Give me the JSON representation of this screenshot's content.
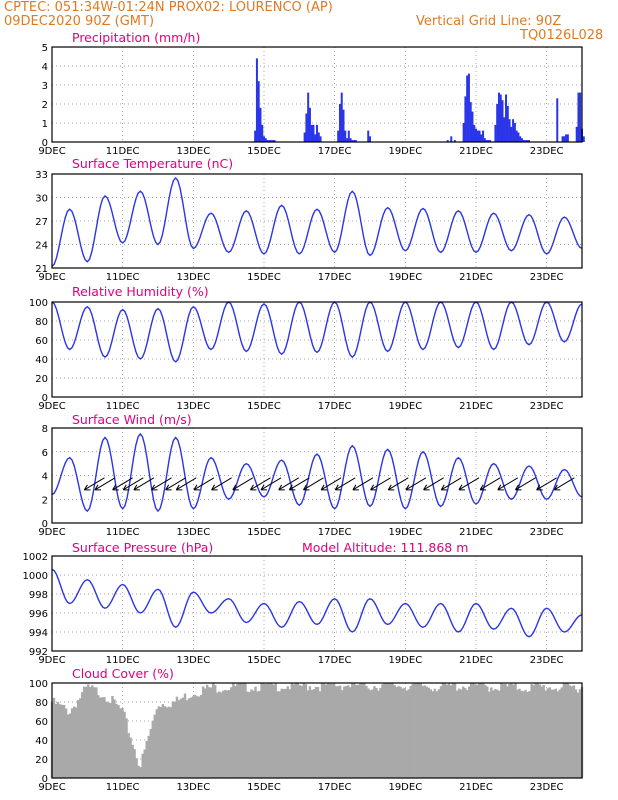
{
  "header": {
    "line1": "CPTEC:  051:34W-01:24N  PROX02: LOURENCO (AP)",
    "line2_left": "09DEC2020 90Z (GMT)",
    "line2_right": "Vertical Grid Line: 90Z",
    "line3_right": "TQ0126L028"
  },
  "colors": {
    "header": "#e07a22",
    "title": "#e0007e",
    "series": "#2a35e8",
    "cloud": "#a9a9a9"
  },
  "chart_data": [
    {
      "type": "bar",
      "title": "Precipitation (mm/h)",
      "ylim": [
        0,
        5
      ],
      "yticks": [
        "0",
        "1",
        "2",
        "3",
        "4",
        "5"
      ],
      "xticks": [
        "9DEC",
        "11DEC",
        "13DEC",
        "15DEC",
        "17DEC",
        "19DEC",
        "21DEC",
        "23DEC"
      ],
      "x": [
        5.75,
        5.8,
        5.85,
        5.9,
        5.95,
        6.0,
        6.05,
        6.1,
        6.15,
        6.2,
        6.25,
        6.3,
        7.15,
        7.2,
        7.25,
        7.3,
        7.35,
        7.4,
        7.45,
        7.5,
        7.55,
        7.6,
        8.1,
        8.15,
        8.2,
        8.25,
        8.3,
        8.35,
        8.4,
        8.45,
        8.5,
        8.55,
        8.6,
        8.95,
        9.0,
        11.2,
        11.3,
        11.4,
        11.65,
        11.7,
        11.75,
        11.8,
        11.85,
        11.9,
        11.95,
        12.0,
        12.05,
        12.1,
        12.15,
        12.2,
        12.25,
        12.3,
        12.35,
        12.4,
        12.55,
        12.6,
        12.65,
        12.7,
        12.75,
        12.8,
        12.85,
        12.9,
        12.95,
        13.0,
        13.05,
        13.1,
        13.15,
        13.2,
        13.25,
        13.3,
        13.35,
        13.4,
        13.45,
        13.5,
        14.3,
        14.45,
        14.5,
        14.55,
        14.6,
        14.85,
        14.9,
        14.95,
        15.0,
        15.05
      ],
      "values": [
        0.6,
        4.4,
        3.2,
        1.8,
        0.9,
        0.3,
        0.2,
        0.1,
        0.1,
        0.1,
        0.1,
        0.1,
        0.5,
        1.5,
        2.6,
        1.8,
        0.9,
        0.9,
        0.4,
        0.9,
        0.5,
        0.3,
        0.6,
        2.0,
        2.6,
        1.7,
        0.6,
        0.2,
        0.6,
        0.2,
        0.1,
        0.1,
        0.1,
        0.6,
        0.3,
        0.1,
        0.3,
        0.1,
        1.0,
        2.4,
        3.5,
        3.6,
        2.1,
        1.6,
        0.9,
        0.7,
        0.6,
        0.6,
        0.4,
        0.6,
        0.2,
        0.1,
        0.1,
        0.1,
        0.9,
        2.0,
        2.6,
        2.5,
        2.2,
        1.3,
        2.5,
        1.9,
        1.2,
        0.8,
        1.2,
        1.0,
        0.6,
        0.5,
        0.3,
        0.2,
        0.1,
        0.1,
        0.1,
        0.1,
        2.3,
        0.3,
        0.3,
        0.4,
        0.4,
        0.8,
        2.6,
        2.6,
        0.7,
        0.3
      ],
      "xlim": [
        0,
        15
      ]
    },
    {
      "type": "line",
      "title": "Surface Temperature (nC)",
      "ylim": [
        21,
        33
      ],
      "yticks": [
        "21",
        "24",
        "27",
        "30",
        "33"
      ],
      "xticks": [
        "9DEC",
        "11DEC",
        "13DEC",
        "15DEC",
        "17DEC",
        "19DEC",
        "21DEC",
        "23DEC"
      ],
      "x": [
        0,
        0.5,
        1,
        1.5,
        2,
        2.5,
        3,
        3.5,
        4,
        4.5,
        5,
        5.5,
        6,
        6.5,
        7,
        7.5,
        8,
        8.5,
        9,
        9.5,
        10,
        10.5,
        11,
        11.5,
        12,
        12.5,
        13,
        13.5,
        14,
        14.5,
        15
      ],
      "values": [
        21.2,
        28.5,
        21.8,
        30.2,
        24.2,
        30.8,
        24.0,
        32.5,
        23.5,
        28.0,
        23.0,
        28.3,
        22.8,
        29.0,
        22.8,
        28.5,
        23.0,
        30.8,
        22.6,
        28.7,
        23.2,
        28.6,
        23.0,
        28.3,
        23.0,
        28.0,
        23.2,
        27.8,
        22.8,
        27.5,
        23.5
      ],
      "xlim": [
        0,
        15
      ]
    },
    {
      "type": "line",
      "title": "Relative Humidity (%)",
      "ylim": [
        0,
        100
      ],
      "yticks": [
        "0",
        "20",
        "40",
        "60",
        "80",
        "100"
      ],
      "xticks": [
        "9DEC",
        "11DEC",
        "13DEC",
        "15DEC",
        "17DEC",
        "19DEC",
        "21DEC",
        "23DEC"
      ],
      "x": [
        0,
        0.5,
        1,
        1.5,
        2,
        2.5,
        3,
        3.5,
        4,
        4.5,
        5,
        5.5,
        6,
        6.5,
        7,
        7.5,
        8,
        8.5,
        9,
        9.5,
        10,
        10.5,
        11,
        11.5,
        12,
        12.5,
        13,
        13.5,
        14,
        14.5,
        15
      ],
      "values": [
        100,
        50,
        95,
        42,
        92,
        40,
        93,
        37,
        95,
        50,
        100,
        48,
        98,
        45,
        100,
        47,
        100,
        42,
        100,
        48,
        100,
        50,
        100,
        52,
        100,
        50,
        100,
        55,
        100,
        58,
        98
      ],
      "xlim": [
        0,
        15
      ]
    },
    {
      "type": "line",
      "title": "Surface Wind (m/s)",
      "ylim": [
        0,
        8
      ],
      "yticks": [
        "0",
        "2",
        "4",
        "6",
        "8"
      ],
      "xticks": [
        "9DEC",
        "11DEC",
        "13DEC",
        "15DEC",
        "17DEC",
        "19DEC",
        "21DEC",
        "23DEC"
      ],
      "x": [
        0,
        0.5,
        1,
        1.5,
        2,
        2.5,
        3,
        3.5,
        4,
        4.5,
        5,
        5.5,
        6,
        6.5,
        7,
        7.5,
        8,
        8.5,
        9,
        9.5,
        10,
        10.5,
        11,
        11.5,
        12,
        12.5,
        13,
        13.5,
        14,
        14.5,
        15
      ],
      "values": [
        2.4,
        5.5,
        1.0,
        7.2,
        1.2,
        7.5,
        1.0,
        7.2,
        1.2,
        5.5,
        2.0,
        5.0,
        2.2,
        5.3,
        1.5,
        5.8,
        1.2,
        6.5,
        1.4,
        6.2,
        1.2,
        6.0,
        1.4,
        5.5,
        1.6,
        5.0,
        2.0,
        4.8,
        2.0,
        4.5,
        2.2
      ],
      "xlim": [
        0,
        15
      ]
    },
    {
      "type": "line",
      "title": "Surface Pressure (hPa)",
      "annotation": "Model Altitude: 111.868  m",
      "ylim": [
        992,
        1002
      ],
      "yticks": [
        "992",
        "994",
        "996",
        "998",
        "1000",
        "1002"
      ],
      "xticks": [
        "9DEC",
        "11DEC",
        "13DEC",
        "15DEC",
        "17DEC",
        "19DEC",
        "21DEC",
        "23DEC"
      ],
      "x": [
        0,
        0.5,
        1,
        1.5,
        2,
        2.5,
        3,
        3.5,
        4,
        4.5,
        5,
        5.5,
        6,
        6.5,
        7,
        7.5,
        8,
        8.5,
        9,
        9.5,
        10,
        10.5,
        11,
        11.5,
        12,
        12.5,
        13,
        13.5,
        14,
        14.5,
        15
      ],
      "values": [
        1000.6,
        997.0,
        999.5,
        996.5,
        999.0,
        996.0,
        998.5,
        994.5,
        998.2,
        996.0,
        997.5,
        995.0,
        997.0,
        994.5,
        997.2,
        994.8,
        997.5,
        994.0,
        997.5,
        994.8,
        997.0,
        994.5,
        997.0,
        994.0,
        997.0,
        994.3,
        996.5,
        993.5,
        996.5,
        994.0,
        995.8
      ],
      "xlim": [
        0,
        15
      ]
    },
    {
      "type": "area",
      "title": "Cloud Cover (%)",
      "ylim": [
        0,
        100
      ],
      "yticks": [
        "0",
        "20",
        "40",
        "60",
        "80",
        "100"
      ],
      "xticks": [
        "9DEC",
        "11DEC",
        "13DEC",
        "15DEC",
        "17DEC",
        "19DEC",
        "21DEC",
        "23DEC"
      ],
      "x": [
        0,
        0.5,
        1,
        1.5,
        2,
        2.5,
        3,
        3.5,
        4,
        4.5,
        5,
        5.5,
        6,
        6.5,
        7,
        7.5,
        8,
        8.5,
        9,
        9.5,
        10,
        10.5,
        11,
        11.5,
        12,
        12.5,
        13,
        13.5,
        14,
        14.5,
        15
      ],
      "values": [
        80,
        70,
        95,
        88,
        70,
        12,
        78,
        80,
        90,
        95,
        96,
        96,
        97,
        97,
        97,
        97,
        98,
        98,
        97,
        98,
        97,
        97,
        96,
        97,
        97,
        96,
        96,
        95,
        96,
        95,
        96
      ],
      "xlim": [
        0,
        15
      ]
    }
  ]
}
